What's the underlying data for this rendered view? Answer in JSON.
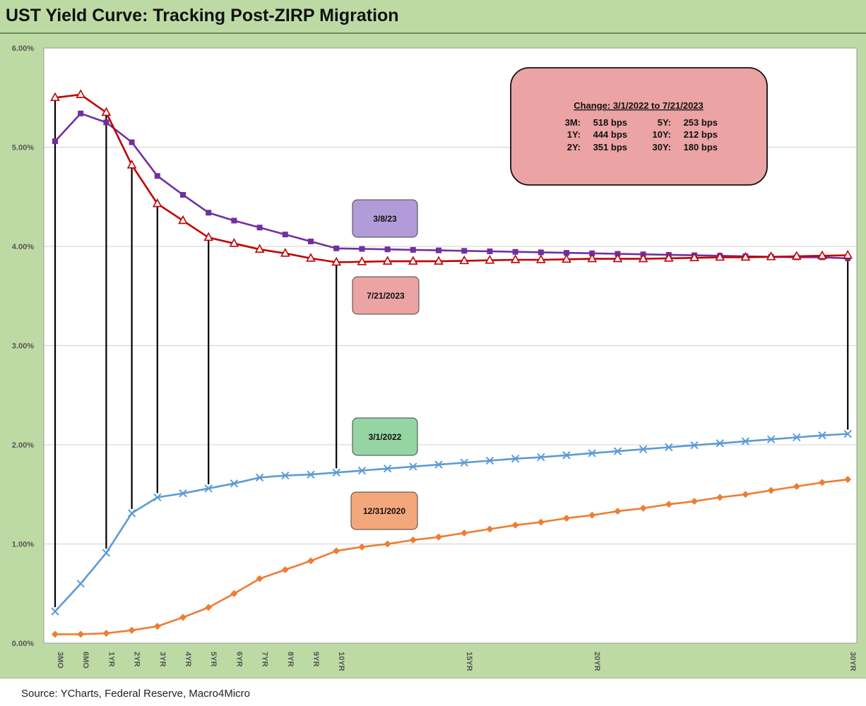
{
  "title": "UST Yield Curve: Tracking Post-ZIRP Migration",
  "source": "Source: YCharts, Federal Reserve, Macro4Micro",
  "change_box": {
    "heading": "Change: 3/1/2022 to 7/21/2023",
    "rows": [
      {
        "a_label": "3M:",
        "a_value": "518 bps",
        "b_label": "5Y:",
        "b_value": "253 bps"
      },
      {
        "a_label": "1Y:",
        "a_value": "444 bps",
        "b_label": "10Y:",
        "b_value": "212 bps"
      },
      {
        "a_label": "2Y:",
        "a_value": "351 bps",
        "b_label": "30Y:",
        "b_value": "180 bps"
      }
    ]
  },
  "chart_data": {
    "type": "line",
    "ylim": [
      0,
      6
    ],
    "y_ticks": [
      "0.00%",
      "1.00%",
      "2.00%",
      "3.00%",
      "4.00%",
      "5.00%",
      "6.00%"
    ],
    "x_tick_labels": [
      "3MO",
      "6MO",
      "1YR",
      "2YR",
      "3YR",
      "4YR",
      "5YR",
      "6YR",
      "7YR",
      "8YR",
      "9YR",
      "10YR",
      "",
      "",
      "",
      "",
      "15YR",
      "",
      "",
      "",
      "",
      "20YR",
      "",
      "",
      "",
      "",
      "",
      "",
      "",
      "",
      "",
      "30YR"
    ],
    "grid": true,
    "series": [
      {
        "name": "3/8/23",
        "color": "#7030a0",
        "marker": "square",
        "values": [
          5.06,
          5.34,
          5.25,
          5.05,
          4.71,
          4.52,
          4.34,
          4.26,
          4.19,
          4.12,
          4.05,
          3.98,
          3.975,
          3.97,
          3.965,
          3.96,
          3.955,
          3.95,
          3.945,
          3.94,
          3.935,
          3.93,
          3.925,
          3.92,
          3.915,
          3.91,
          3.905,
          3.9,
          3.895,
          3.89,
          3.89,
          3.88
        ]
      },
      {
        "name": "7/21/2023",
        "color": "#c00000",
        "marker": "triangle",
        "values": [
          5.5,
          5.53,
          5.35,
          4.82,
          4.43,
          4.26,
          4.09,
          4.03,
          3.97,
          3.93,
          3.88,
          3.84,
          3.845,
          3.85,
          3.85,
          3.85,
          3.855,
          3.86,
          3.865,
          3.865,
          3.87,
          3.875,
          3.875,
          3.875,
          3.88,
          3.885,
          3.89,
          3.89,
          3.895,
          3.9,
          3.905,
          3.91
        ]
      },
      {
        "name": "3/1/2022",
        "color": "#5b9bd5",
        "marker": "x",
        "values": [
          0.32,
          0.6,
          0.91,
          1.31,
          1.47,
          1.51,
          1.56,
          1.61,
          1.67,
          1.69,
          1.7,
          1.72,
          1.74,
          1.76,
          1.78,
          1.8,
          1.82,
          1.84,
          1.86,
          1.875,
          1.895,
          1.915,
          1.935,
          1.955,
          1.975,
          1.995,
          2.015,
          2.035,
          2.055,
          2.075,
          2.095,
          2.11
        ]
      },
      {
        "name": "12/31/2020",
        "color": "#ed7d31",
        "marker": "diamond",
        "values": [
          0.09,
          0.09,
          0.1,
          0.13,
          0.17,
          0.26,
          0.36,
          0.5,
          0.65,
          0.74,
          0.83,
          0.93,
          0.97,
          1.0,
          1.04,
          1.07,
          1.11,
          1.15,
          1.19,
          1.22,
          1.26,
          1.29,
          1.33,
          1.36,
          1.4,
          1.43,
          1.47,
          1.5,
          1.54,
          1.58,
          1.62,
          1.65
        ]
      }
    ],
    "drop_lines": {
      "from_series": "7/21/2023",
      "to_series": "3/1/2022",
      "indices": [
        0,
        2,
        3,
        4,
        6,
        11,
        31
      ],
      "color": "#000000"
    },
    "series_labels": [
      {
        "text": "3/8/23",
        "fill": "#b19cd9"
      },
      {
        "text": "7/21/2023",
        "fill": "#eba3a3"
      },
      {
        "text": "3/1/2022",
        "fill": "#95d4a3"
      },
      {
        "text": "12/31/2020",
        "fill": "#f4a77a"
      }
    ]
  }
}
